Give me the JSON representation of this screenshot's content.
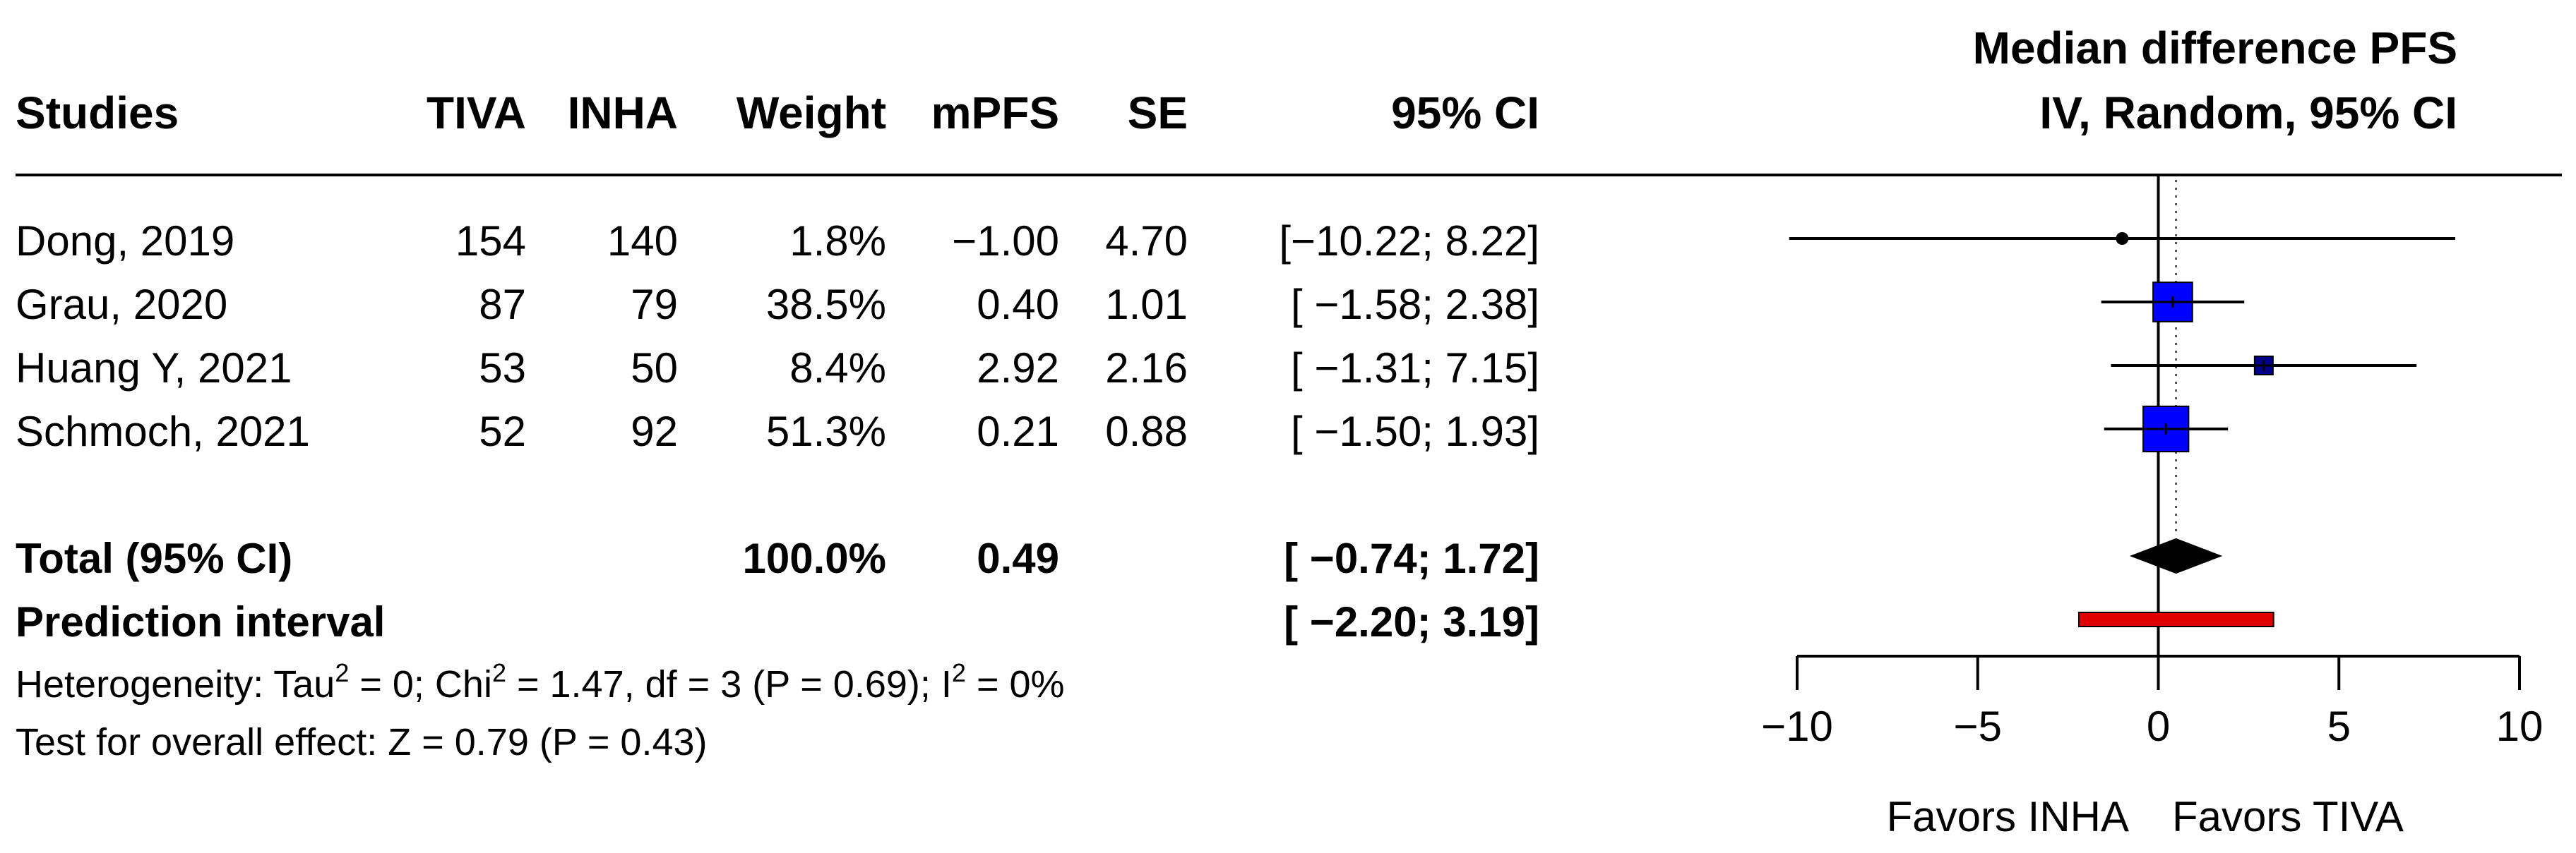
{
  "chart_data": {
    "type": "forest",
    "right_header": {
      "line1": "Median difference PFS",
      "line2": "IV, Random, 95% CI"
    },
    "columns": [
      "Studies",
      "TIVA",
      "INHA",
      "Weight",
      "mPFS",
      "SE",
      "95% CI"
    ],
    "studies": [
      {
        "study": "Dong, 2019",
        "tiva": "154",
        "inha": "140",
        "weight": "1.8%",
        "mpfs": "−1.00",
        "se": "4.70",
        "ci": "[−10.22; 8.22]",
        "est": -1.0,
        "lo": -10.22,
        "hi": 8.22,
        "w": 1.8
      },
      {
        "study": "Grau, 2020",
        "tiva": "87",
        "inha": "79",
        "weight": "38.5%",
        "mpfs": "0.40",
        "se": "1.01",
        "ci": "[ −1.58; 2.38]",
        "est": 0.4,
        "lo": -1.58,
        "hi": 2.38,
        "w": 38.5
      },
      {
        "study": "Huang Y, 2021",
        "tiva": "53",
        "inha": "50",
        "weight": "8.4%",
        "mpfs": "2.92",
        "se": "2.16",
        "ci": "[ −1.31; 7.15]",
        "est": 2.92,
        "lo": -1.31,
        "hi": 7.15,
        "w": 8.4
      },
      {
        "study": "Schmoch, 2021",
        "tiva": "52",
        "inha": "92",
        "weight": "51.3%",
        "mpfs": "0.21",
        "se": "0.88",
        "ci": "[ −1.50; 1.93]",
        "est": 0.21,
        "lo": -1.5,
        "hi": 1.93,
        "w": 51.3
      }
    ],
    "total": {
      "label": "Total (95% CI)",
      "weight": "100.0%",
      "mpfs": "0.49",
      "ci": "[ −0.74; 1.72]",
      "est": 0.49,
      "lo": -0.74,
      "hi": 1.72
    },
    "prediction": {
      "label": "Prediction interval",
      "ci": "[ −2.20; 3.19]",
      "lo": -2.2,
      "hi": 3.19
    },
    "heterogeneity": {
      "p1": "Heterogeneity: Tau",
      "s1": "2",
      "p2": " = 0; Chi",
      "s2": "2",
      "p3": " = 1.47, df = 3 (P = 0.69); I",
      "s3": "2",
      "p4": " = 0%"
    },
    "overall_effect": "Test for overall effect: Z = 0.79 (P = 0.43)",
    "x_ticks": [
      -10,
      -5,
      0,
      5,
      10
    ],
    "x_tick_labels": [
      "−10",
      "−5",
      "0",
      "5",
      "10"
    ],
    "xlim": [
      -10,
      10
    ],
    "favors_left": "Favors INHA",
    "favors_right": "Favors TIVA",
    "reference_line": 0,
    "colors": {
      "study_box": "#0000ff",
      "small_box": "#00008b",
      "prediction_bar": "#e00000",
      "diamond": "#000000"
    }
  }
}
